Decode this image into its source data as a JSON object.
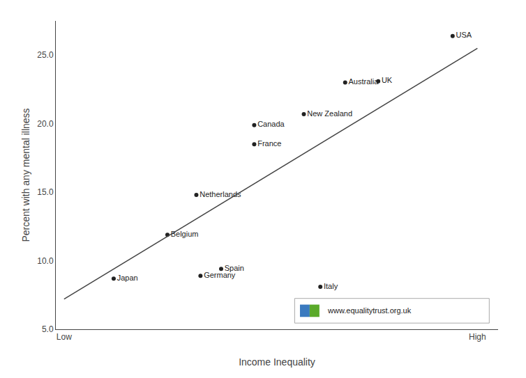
{
  "chart_data": {
    "type": "scatter",
    "xlabel": "Income Inequality",
    "ylabel": "Percent with any mental illness",
    "series": [
      {
        "type": "scatter",
        "x": [
          0.12,
          0.25,
          0.33,
          0.38,
          0.32,
          0.46,
          0.46,
          0.58,
          0.62,
          0.68,
          0.76,
          0.94
        ],
        "values": [
          8.7,
          11.9,
          8.9,
          9.4,
          14.8,
          18.5,
          19.9,
          20.7,
          8.1,
          23.0,
          23.1,
          26.4
        ],
        "labels": [
          "Japan",
          "Belgium",
          "Germany",
          "Spain",
          "Netherlands",
          "France",
          "Canada",
          "New Zealand",
          "Italy",
          "Australia",
          "UK",
          "USA"
        ],
        "color": "#222222",
        "marker": "circle"
      },
      {
        "type": "line",
        "x": [
          0.0,
          1.0
        ],
        "values": [
          7.2,
          25.5
        ],
        "color": "#444444",
        "line_style": "solid"
      }
    ],
    "xlim": [
      -0.02,
      1.05
    ],
    "xticks": [
      {
        "value": 0.0,
        "label": "Low"
      },
      {
        "value": 1.0,
        "label": "High"
      }
    ],
    "ylim": [
      5.0,
      27.5
    ],
    "yticks": [
      {
        "value": 5.0,
        "label": "5.0"
      },
      {
        "value": 10.0,
        "label": "10.0"
      },
      {
        "value": 15.0,
        "label": "15.0"
      },
      {
        "value": 20.0,
        "label": "20.0"
      },
      {
        "value": 25.0,
        "label": "25.0"
      }
    ],
    "grid": false,
    "legend": false,
    "annotations": [
      {
        "text": "www.equalitytrust.org.uk",
        "colors": [
          "#3a7abf",
          "#5aaa2a"
        ]
      }
    ]
  }
}
